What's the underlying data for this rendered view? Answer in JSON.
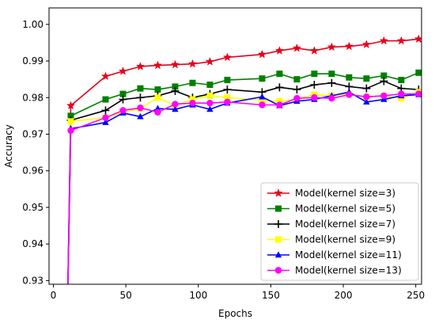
{
  "chart_data": {
    "type": "line",
    "xlabel": "Epochs",
    "ylabel": "Accuracy",
    "xlim": [
      -3,
      254
    ],
    "ylim": [
      0.929,
      1.0045
    ],
    "x_ticks": [
      0,
      50,
      100,
      150,
      200,
      250
    ],
    "y_ticks": [
      0.93,
      0.94,
      0.95,
      0.96,
      0.97,
      0.98,
      0.99,
      1.0
    ],
    "x_tick_labels": [
      "0",
      "50",
      "100",
      "150",
      "200",
      "250"
    ],
    "y_tick_labels": [
      "0.93",
      "0.94",
      "0.95",
      "0.96",
      "0.97",
      "0.98",
      "0.99",
      "1.00"
    ],
    "grid": false,
    "legend_position": "bottom-right",
    "x": [
      10,
      12,
      36,
      48,
      60,
      72,
      84,
      96,
      108,
      120,
      144,
      156,
      168,
      180,
      192,
      204,
      216,
      228,
      240,
      252
    ],
    "series": [
      {
        "name": "Model(kernel size=3)",
        "color": "#e8001c",
        "marker": "star",
        "values": [
          0.928,
          0.9778,
          0.9858,
          0.9872,
          0.9885,
          0.9888,
          0.989,
          0.9892,
          0.9898,
          0.991,
          0.9918,
          0.9928,
          0.9935,
          0.9928,
          0.9938,
          0.994,
          0.9945,
          0.9955,
          0.9955,
          0.996
        ]
      },
      {
        "name": "Model(kernel size=5)",
        "color": "#008000",
        "marker": "square",
        "values": [
          0.928,
          0.975,
          0.9795,
          0.981,
          0.9825,
          0.9822,
          0.983,
          0.984,
          0.9835,
          0.9848,
          0.9852,
          0.9865,
          0.985,
          0.9865,
          0.9865,
          0.9855,
          0.9852,
          0.986,
          0.9848,
          0.9868
        ]
      },
      {
        "name": "Model(kernel size=7)",
        "color": "#000000",
        "marker": "plus",
        "values": [
          0.928,
          0.9738,
          0.9765,
          0.9795,
          0.98,
          0.9805,
          0.9818,
          0.98,
          0.981,
          0.9822,
          0.9815,
          0.9828,
          0.9822,
          0.9835,
          0.984,
          0.983,
          0.9825,
          0.9845,
          0.9825,
          0.9822
        ]
      },
      {
        "name": "Model(kernel size=9)",
        "color": "#ffff00",
        "marker": "square",
        "values": [
          0.928,
          0.9735,
          0.9745,
          0.976,
          0.977,
          0.98,
          0.9778,
          0.9795,
          0.9805,
          0.98,
          0.9792,
          0.979,
          0.9795,
          0.9808,
          0.9805,
          0.981,
          0.9802,
          0.9805,
          0.9798,
          0.9815
        ]
      },
      {
        "name": "Model(kernel size=11)",
        "color": "#0000ff",
        "marker": "triangle",
        "values": [
          0.928,
          0.9715,
          0.9732,
          0.9758,
          0.9748,
          0.977,
          0.9768,
          0.978,
          0.9768,
          0.9785,
          0.9802,
          0.9778,
          0.979,
          0.9795,
          0.9805,
          0.9815,
          0.9788,
          0.9795,
          0.9805,
          0.9808
        ]
      },
      {
        "name": "Model(kernel size=13)",
        "color": "#ff00ff",
        "marker": "circle",
        "values": [
          0.928,
          0.971,
          0.9745,
          0.9765,
          0.9772,
          0.976,
          0.9782,
          0.9785,
          0.9785,
          0.9788,
          0.978,
          0.978,
          0.9798,
          0.98,
          0.9798,
          0.9808,
          0.9802,
          0.9805,
          0.981,
          0.981
        ]
      }
    ]
  }
}
